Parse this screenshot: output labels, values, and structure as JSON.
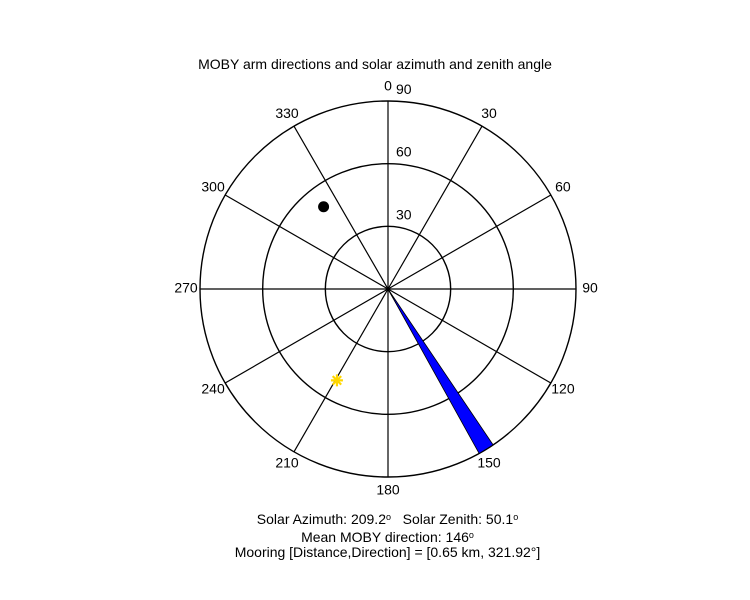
{
  "chart_data": {
    "type": "polar",
    "title": "MOBY arm directions and solar azimuth and zenith angle",
    "theta_direction": "clockwise",
    "theta_zero": "top",
    "theta_ticks": [
      "0",
      "30",
      "60",
      "90",
      "120",
      "150",
      "180",
      "210",
      "240",
      "270",
      "300",
      "330"
    ],
    "theta_tick_values": [
      0,
      30,
      60,
      90,
      120,
      150,
      180,
      210,
      240,
      270,
      300,
      330
    ],
    "r_ticks": [
      "30",
      "60",
      "90"
    ],
    "r_tick_values": [
      30,
      60,
      90
    ],
    "r_max": 90,
    "series": [
      {
        "name": "MOBY arm",
        "marker": "wedge",
        "color": "#0000ff",
        "theta_start": 146,
        "theta_end": 151,
        "r": 90
      },
      {
        "name": "Mooring",
        "marker": "dot",
        "color": "#000000",
        "theta": 321.92,
        "r": 50
      },
      {
        "name": "Sun",
        "marker": "star",
        "color": "#ffd700",
        "theta": 209.2,
        "r": 50.1
      }
    ]
  },
  "info": {
    "solar_azimuth_label": "Solar Azimuth: 209.2",
    "solar_zenith_label": "Solar Zenith: 50.1",
    "deg_symbol": "o",
    "mean_direction_label": "Mean MOBY direction: 146",
    "mooring_label": "Mooring [Distance,Direction] = [0.65 km, 321.92°]"
  }
}
